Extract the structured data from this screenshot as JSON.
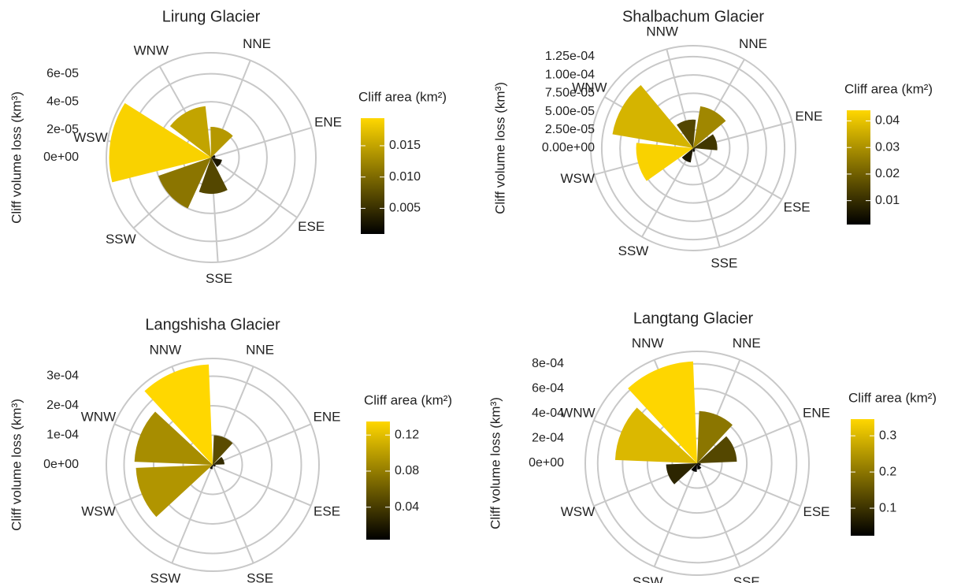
{
  "chart_data": [
    {
      "type": "polar_bar",
      "title": "Lirung Glacier",
      "categories": [
        "NNE",
        "ENE",
        "ESE",
        "SSE",
        "SSW",
        "WSW",
        "WNW"
      ],
      "values": [
        2.2e-05,
        3e-06,
        8e-06,
        2.6e-05,
        4e-05,
        7.3e-05,
        3.7e-05
      ],
      "color_values": [
        0.014,
        0.002,
        0.003,
        0.007,
        0.011,
        0.019,
        0.015
      ],
      "y_label": "Cliff volume loss (km³)",
      "ylim": [
        0,
        7.5e-05
      ],
      "yticks": [
        {
          "value": 0,
          "label": "0e+00"
        },
        {
          "value": 2e-05,
          "label": "2e-05"
        },
        {
          "value": 4e-05,
          "label": "4e-05"
        },
        {
          "value": 6e-05,
          "label": "6e-05"
        }
      ],
      "legend_title": "Cliff area (km²)",
      "colorlim": [
        0.0009,
        0.0194
      ],
      "colorticks": [
        0.005,
        {
          "value": 0.01,
          "label": "0.010"
        },
        0.015
      ],
      "low_color": "#000000",
      "high_color": "#ffd700",
      "grid": true
    },
    {
      "type": "polar_bar",
      "title": "Shalbachum Glacier",
      "categories": [
        "NNW",
        "NNE",
        "ENE",
        "ESE",
        "SSE",
        "SSW",
        "WSW",
        "WNW"
      ],
      "values": [
        3.9e-05,
        5.8e-05,
        3.3e-05,
        3e-06,
        5e-06,
        2e-05,
        7.8e-05,
        0.000112
      ],
      "color_values": [
        0.015,
        0.028,
        0.012,
        0.003,
        0.002,
        0.006,
        0.043,
        0.037
      ],
      "y_label": "Cliff volume loss (km³)",
      "ylim": [
        0,
        0.00014
      ],
      "yticks": [
        {
          "value": 0,
          "label": "0.00e+00"
        },
        {
          "value": 2.5e-05,
          "label": "2.50e-05"
        },
        {
          "value": 5e-05,
          "label": "5.00e-05"
        },
        {
          "value": 7.5e-05,
          "label": "7.50e-05"
        },
        {
          "value": 0.0001,
          "label": "1.00e-04"
        },
        {
          "value": 0.000125,
          "label": "1.25e-04"
        }
      ],
      "legend_title": "Cliff area (km²)",
      "colorlim": [
        0.001,
        0.044
      ],
      "colorticks": [
        0.01,
        0.02,
        0.03,
        0.04
      ],
      "low_color": "#000000",
      "high_color": "#ffd700",
      "grid": true
    },
    {
      "type": "polar_bar",
      "title": "Langshisha Glacier",
      "categories": [
        "NNW",
        "NNE",
        "ENE",
        "ESE",
        "SSE",
        "SSW",
        "WSW",
        "WNW"
      ],
      "values": [
        0.00034,
        0.0001,
        4e-05,
        1e-05,
        5e-06,
        1.5e-05,
        0.00026,
        0.000265
      ],
      "color_values": [
        0.135,
        0.05,
        0.03,
        0.01,
        0.005,
        0.01,
        0.095,
        0.09
      ],
      "y_label": "Cliff volume loss (km³)",
      "ylim": [
        0,
        0.00036
      ],
      "yticks": [
        {
          "value": 0,
          "label": "0e+00"
        },
        {
          "value": 0.0001,
          "label": "1e-04"
        },
        {
          "value": 0.0002,
          "label": "2e-04"
        },
        {
          "value": 0.0003,
          "label": "3e-04"
        }
      ],
      "legend_title": "Cliff area (km²)",
      "colorlim": [
        0.004,
        0.135
      ],
      "colorticks": [
        0.04,
        0.08,
        0.12
      ],
      "low_color": "#000000",
      "high_color": "#ffd700",
      "grid": true
    },
    {
      "type": "polar_bar",
      "title": "Langtang Glacier",
      "categories": [
        "NNW",
        "NNE",
        "ENE",
        "ESE",
        "SSE",
        "SSW",
        "WSW",
        "WNW"
      ],
      "values": [
        0.00082,
        0.00042,
        0.00032,
        3e-05,
        5e-05,
        7e-05,
        0.00025,
        0.00066
      ],
      "color_values": [
        0.345,
        0.2,
        0.13,
        0.03,
        0.03,
        0.03,
        0.08,
        0.3
      ],
      "y_label": "Cliff volume loss (km³)",
      "ylim": [
        0,
        0.0009
      ],
      "yticks": [
        {
          "value": 0,
          "label": "0e+00"
        },
        {
          "value": 0.0002,
          "label": "2e-04"
        },
        {
          "value": 0.0004,
          "label": "4e-04"
        },
        {
          "value": 0.0006,
          "label": "6e-04"
        },
        {
          "value": 0.0008,
          "label": "8e-04"
        }
      ],
      "legend_title": "Cliff area (km²)",
      "colorlim": [
        0.024,
        0.346
      ],
      "colorticks": [
        0.1,
        0.2,
        0.3
      ],
      "low_color": "#000000",
      "high_color": "#ffd700",
      "grid": true
    }
  ]
}
